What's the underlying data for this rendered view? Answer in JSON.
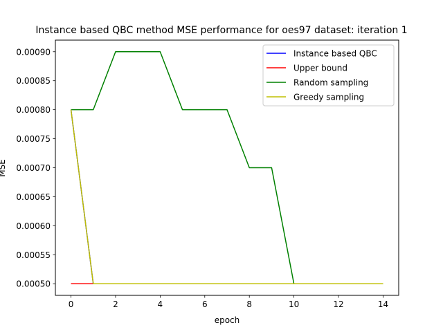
{
  "chart_data": {
    "type": "line",
    "title": "Instance based QBC method MSE performance for oes97 dataset: iteration 1",
    "xlabel": "epoch",
    "ylabel": "MSE",
    "xlim": [
      -0.7,
      14.7
    ],
    "ylim": [
      0.00048,
      0.00092
    ],
    "xticks": [
      0,
      2,
      4,
      6,
      8,
      10,
      12,
      14
    ],
    "xtick_labels": [
      "0",
      "2",
      "4",
      "6",
      "8",
      "10",
      "12",
      "14"
    ],
    "yticks": [
      0.0005,
      0.00055,
      0.0006,
      0.00065,
      0.0007,
      0.00075,
      0.0008,
      0.00085,
      0.0009
    ],
    "ytick_labels": [
      "0.00050",
      "0.00055",
      "0.00060",
      "0.00065",
      "0.00070",
      "0.00075",
      "0.00080",
      "0.00085",
      "0.00090"
    ],
    "grid": false,
    "legend_position": "top-right",
    "x": [
      0,
      1,
      2,
      3,
      4,
      5,
      6,
      7,
      8,
      9,
      10,
      11,
      12,
      13,
      14
    ],
    "series": [
      {
        "name": "Instance based QBC",
        "color": "#0000ff",
        "values": [
          0.0008,
          0.0005,
          0.0005,
          0.0005,
          0.0005,
          0.0005,
          0.0005,
          0.0005,
          0.0005,
          0.0005,
          0.0005,
          0.0005,
          0.0005,
          0.0005,
          0.0005
        ]
      },
      {
        "name": "Upper bound",
        "color": "#ff0000",
        "values": [
          0.0005,
          0.0005,
          0.0005,
          0.0005,
          0.0005,
          0.0005,
          0.0005,
          0.0005,
          0.0005,
          0.0005,
          0.0005,
          0.0005,
          0.0005,
          0.0005,
          0.0005
        ]
      },
      {
        "name": "Random sampling",
        "color": "#008000",
        "values": [
          0.0008,
          0.0008,
          0.0009,
          0.0009,
          0.0009,
          0.0008,
          0.0008,
          0.0008,
          0.0007,
          0.0007,
          0.0005,
          0.0005,
          0.0005,
          0.0005,
          0.0005
        ]
      },
      {
        "name": "Greedy sampling",
        "color": "#bfbf00",
        "values": [
          0.0008,
          0.0005,
          0.0005,
          0.0005,
          0.0005,
          0.0005,
          0.0005,
          0.0005,
          0.0005,
          0.0005,
          0.0005,
          0.0005,
          0.0005,
          0.0005,
          0.0005
        ]
      }
    ]
  }
}
